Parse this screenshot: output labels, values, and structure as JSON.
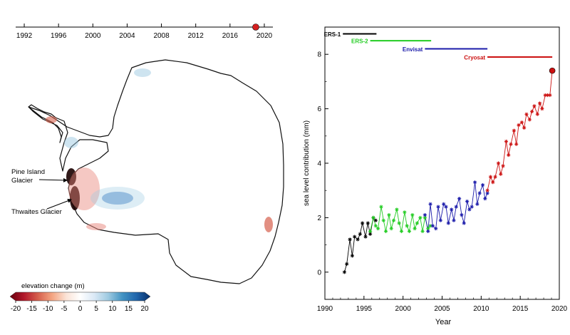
{
  "timeline": {
    "ticks": [
      "1992",
      "1996",
      "2000",
      "2004",
      "2008",
      "2012",
      "2016",
      "2020"
    ],
    "range": [
      1991,
      2021
    ],
    "current_year": 2019,
    "marker_color": "#d42020"
  },
  "map": {
    "labels": [
      "Pine Island Glacier",
      "Thwaites Glacier"
    ],
    "colorbar": {
      "title": "elevation change (m)",
      "ticks": [
        "-20",
        "-15",
        "-10",
        "-5",
        "0",
        "5",
        "10",
        "15",
        "20"
      ],
      "range": [
        -20,
        20
      ],
      "colors": [
        "#67000d",
        "#b2182b",
        "#d6604d",
        "#f4a582",
        "#fbe3d6",
        "#ffffff",
        "#dbe9f6",
        "#9ecae1",
        "#4393c3",
        "#2166ac",
        "#08306b"
      ]
    }
  },
  "chart_data": {
    "type": "line",
    "xlabel": "Year",
    "ylabel": "sea level contribution (mm)",
    "xlim": [
      1990,
      2020
    ],
    "ylim": [
      -1,
      9
    ],
    "xticks": [
      "1990",
      "1995",
      "2000",
      "2005",
      "2010",
      "2015",
      "2020"
    ],
    "yticks": [
      "0",
      "2",
      "4",
      "6",
      "8"
    ],
    "grid": false,
    "missions": [
      {
        "name": "ERS-1",
        "start": 1992.3,
        "end": 1996.6,
        "y": 8.75,
        "color": "#000000"
      },
      {
        "name": "ERS-2",
        "start": 1995.8,
        "end": 2003.6,
        "y": 8.5,
        "color": "#22cc22"
      },
      {
        "name": "Envisat",
        "start": 2002.8,
        "end": 2010.8,
        "y": 8.2,
        "color": "#1a1aaa"
      },
      {
        "name": "Cryosat",
        "start": 2010.8,
        "end": 2019.1,
        "y": 7.9,
        "color": "#cc1111"
      }
    ],
    "series": [
      {
        "name": "ERS-1",
        "color": "#000000",
        "x": [
          1992.5,
          1992.8,
          1993.2,
          1993.5,
          1993.8,
          1994.2,
          1994.5,
          1994.8,
          1995.2,
          1995.5,
          1995.8,
          1996.2,
          1996.5
        ],
        "y": [
          0.0,
          0.3,
          1.2,
          0.6,
          1.3,
          1.2,
          1.4,
          1.8,
          1.3,
          1.8,
          1.4,
          2.0,
          1.9
        ]
      },
      {
        "name": "ERS-2",
        "color": "#22cc22",
        "x": [
          1995.8,
          1996.2,
          1996.5,
          1996.8,
          1997.2,
          1997.5,
          1997.8,
          1998.2,
          1998.5,
          1998.8,
          1999.2,
          1999.5,
          1999.8,
          2000.2,
          2000.5,
          2000.8,
          2001.2,
          2001.5,
          2001.8,
          2002.2,
          2002.5,
          2002.8,
          2003.2,
          2003.5
        ],
        "y": [
          1.5,
          2.0,
          1.7,
          1.6,
          2.4,
          1.9,
          1.5,
          2.1,
          1.6,
          1.9,
          2.3,
          1.8,
          1.5,
          2.2,
          1.7,
          1.5,
          2.1,
          1.6,
          1.8,
          2.0,
          1.5,
          2.0,
          1.6,
          1.7
        ]
      },
      {
        "name": "Envisat",
        "color": "#1a1aaa",
        "x": [
          2002.8,
          2003.2,
          2003.5,
          2003.8,
          2004.2,
          2004.5,
          2004.8,
          2005.2,
          2005.5,
          2005.8,
          2006.2,
          2006.5,
          2006.8,
          2007.2,
          2007.5,
          2007.8,
          2008.2,
          2008.5,
          2008.8,
          2009.2,
          2009.5,
          2009.8,
          2010.2,
          2010.5,
          2010.8
        ],
        "y": [
          2.1,
          1.5,
          2.5,
          1.7,
          1.6,
          2.4,
          1.9,
          2.5,
          2.4,
          1.8,
          2.3,
          1.9,
          2.4,
          2.7,
          2.1,
          1.8,
          2.6,
          2.3,
          2.4,
          3.3,
          2.5,
          2.9,
          3.2,
          2.7,
          2.9
        ]
      },
      {
        "name": "Cryosat",
        "color": "#cc1111",
        "x": [
          2010.8,
          2011.2,
          2011.5,
          2011.8,
          2012.2,
          2012.5,
          2012.8,
          2013.2,
          2013.5,
          2013.8,
          2014.2,
          2014.5,
          2014.8,
          2015.2,
          2015.5,
          2015.8,
          2016.2,
          2016.5,
          2016.8,
          2017.2,
          2017.5,
          2017.8,
          2018.2,
          2018.5,
          2018.8,
          2019.1
        ],
        "y": [
          3.0,
          3.5,
          3.3,
          3.5,
          4.0,
          3.6,
          3.9,
          4.8,
          4.3,
          4.7,
          5.2,
          4.7,
          5.4,
          5.5,
          5.3,
          5.8,
          5.6,
          5.9,
          6.1,
          5.8,
          6.2,
          6.0,
          6.5,
          6.5,
          6.5,
          7.4
        ]
      }
    ]
  }
}
